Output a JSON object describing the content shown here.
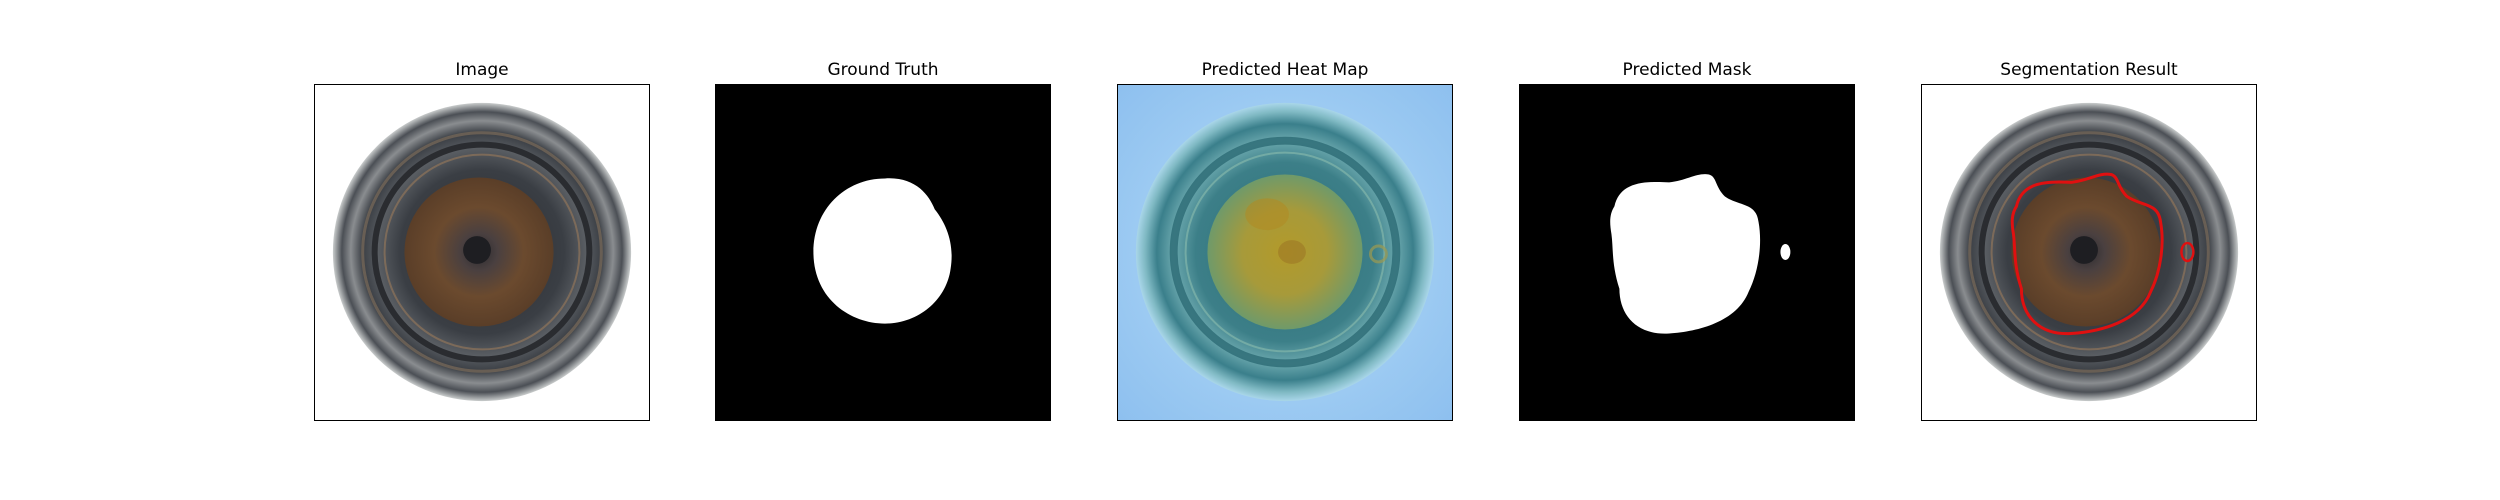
{
  "figure": {
    "panels": [
      {
        "title": "Image"
      },
      {
        "title": "Ground Truth"
      },
      {
        "title": "Predicted Heat Map"
      },
      {
        "title": "Predicted Mask"
      },
      {
        "title": "Segmentation Result"
      }
    ],
    "colors": {
      "mask_background": "#000000",
      "mask_foreground": "#ffffff",
      "heatmap_low": "#8ec8f4",
      "heatmap_high": "#c8a21e",
      "contour": "#e01010",
      "ring_dark": "#3a3d42",
      "iris_brown": "#6b4a2e"
    }
  }
}
